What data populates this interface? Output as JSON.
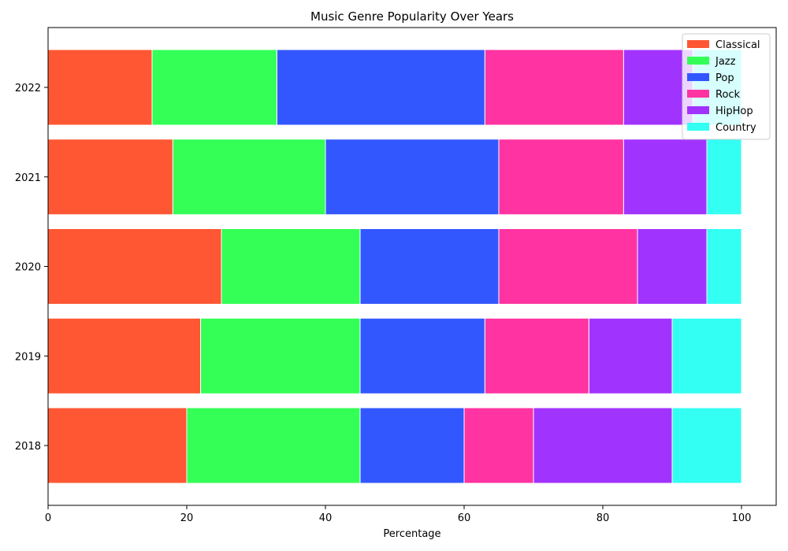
{
  "chart_data": {
    "type": "bar",
    "orientation": "horizontal",
    "stacked": true,
    "title": "Music Genre Popularity Over Years",
    "xlabel": "Percentage",
    "ylabel": "",
    "xlim": [
      0,
      105
    ],
    "x_ticks": [
      0,
      20,
      40,
      60,
      80,
      100
    ],
    "categories": [
      "2018",
      "2019",
      "2020",
      "2021",
      "2022"
    ],
    "legend_position": "top-right",
    "grid": false,
    "series": [
      {
        "name": "Classical",
        "color": "#ff5733",
        "values": [
          20,
          22,
          25,
          18,
          15
        ]
      },
      {
        "name": "Jazz",
        "color": "#33ff57",
        "values": [
          25,
          23,
          20,
          22,
          18
        ]
      },
      {
        "name": "Pop",
        "color": "#3357ff",
        "values": [
          15,
          18,
          20,
          25,
          30
        ]
      },
      {
        "name": "Rock",
        "color": "#ff33a1",
        "values": [
          10,
          15,
          20,
          18,
          20
        ]
      },
      {
        "name": "HipHop",
        "color": "#a133ff",
        "values": [
          20,
          12,
          10,
          12,
          10
        ]
      },
      {
        "name": "Country",
        "color": "#33fff3",
        "values": [
          10,
          10,
          5,
          5,
          7
        ]
      }
    ]
  }
}
